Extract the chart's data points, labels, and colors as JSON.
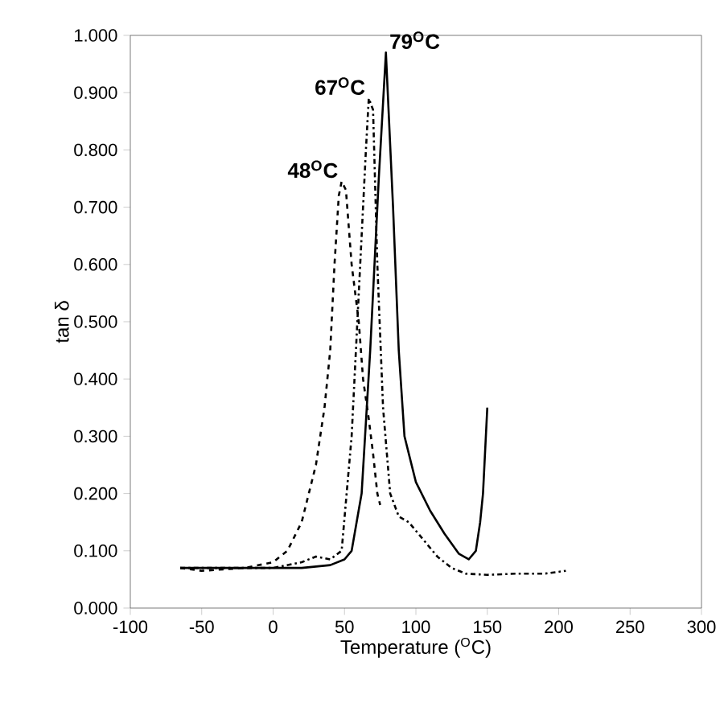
{
  "chart_data": {
    "type": "line",
    "xlabel": "Temperature ($^{O}$C)",
    "ylabel": "tan δ",
    "xlim": [
      -100,
      300
    ],
    "ylim": [
      0,
      1
    ],
    "xticks": [
      -100,
      -50,
      0,
      50,
      100,
      150,
      200,
      250,
      300
    ],
    "yticks": [
      {
        "value": 0,
        "label": "0.000"
      },
      {
        "value": 0.1,
        "label": "0.100"
      },
      {
        "value": 0.2,
        "label": "0.200"
      },
      {
        "value": 0.3,
        "label": "0.300"
      },
      {
        "value": 0.4,
        "label": "0.400"
      },
      {
        "value": 0.5,
        "label": "0.500"
      },
      {
        "value": 0.6,
        "label": "0.600"
      },
      {
        "value": 0.7,
        "label": "0.700"
      },
      {
        "value": 0.8,
        "label": "0.800"
      },
      {
        "value": 0.9,
        "label": "0.900"
      },
      {
        "value": 1,
        "label": "1.000"
      }
    ],
    "grid": false,
    "marker": "none",
    "series": [
      {
        "color": "#000000",
        "line_style": "solid",
        "x": [
          -65,
          -30,
          0,
          20,
          40,
          50,
          55,
          62,
          68,
          74,
          79,
          84,
          88,
          92,
          100,
          110,
          120,
          130,
          137,
          142,
          145,
          147,
          150
        ],
        "values": [
          0.07,
          0.07,
          0.07,
          0.07,
          0.075,
          0.085,
          0.1,
          0.2,
          0.45,
          0.75,
          0.97,
          0.7,
          0.45,
          0.3,
          0.22,
          0.17,
          0.13,
          0.095,
          0.085,
          0.1,
          0.15,
          0.2,
          0.35
        ]
      },
      {
        "color": "#000000",
        "line_style": "dashdot",
        "x": [
          -65,
          -30,
          0,
          20,
          30,
          40,
          48,
          55,
          60,
          65,
          67,
          70,
          73,
          77,
          82,
          88,
          95,
          105,
          115,
          125,
          135,
          150,
          170,
          190,
          205
        ],
        "values": [
          0.07,
          0.07,
          0.07,
          0.08,
          0.09,
          0.085,
          0.1,
          0.3,
          0.55,
          0.8,
          0.89,
          0.87,
          0.6,
          0.35,
          0.2,
          0.16,
          0.15,
          0.12,
          0.09,
          0.07,
          0.06,
          0.058,
          0.06,
          0.06,
          0.065
        ]
      },
      {
        "color": "#000000",
        "line_style": "dashed",
        "x": [
          -65,
          -50,
          -20,
          0,
          10,
          20,
          30,
          36,
          40,
          43,
          46,
          48,
          51,
          55,
          60,
          63,
          67,
          70,
          73,
          75
        ],
        "values": [
          0.07,
          0.065,
          0.07,
          0.08,
          0.1,
          0.15,
          0.25,
          0.35,
          0.45,
          0.6,
          0.72,
          0.745,
          0.73,
          0.6,
          0.5,
          0.4,
          0.33,
          0.27,
          0.2,
          0.18
        ]
      }
    ],
    "annotations": [
      {
        "text": "48$^{O}$C",
        "x": 48,
        "y": 0.745
      },
      {
        "text": "67$^{O}$C",
        "x": 67,
        "y": 0.89
      },
      {
        "text": "79$^{O}$C",
        "x": 79,
        "y": 0.97
      }
    ]
  }
}
